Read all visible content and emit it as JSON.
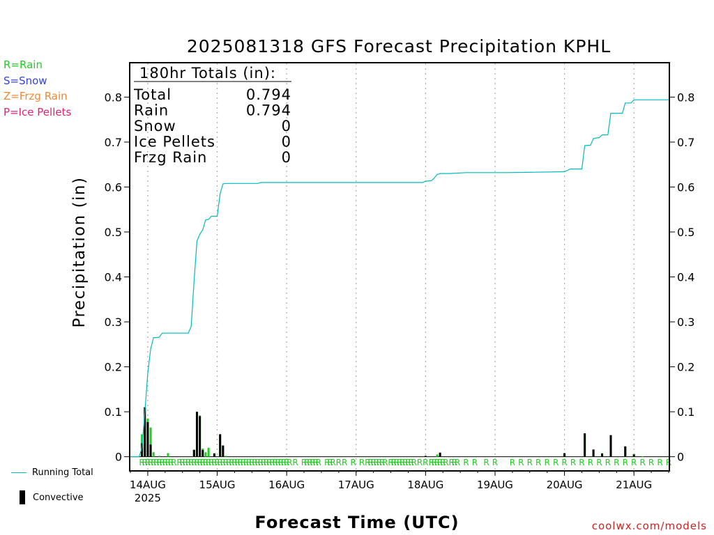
{
  "title": "2025081318 GFS Forecast Precipitation KPHL",
  "ylabel": "Precipitation (in)",
  "xlabel": "Forecast Time (UTC)",
  "credit": "coolwx.com/models",
  "legend_types": {
    "rain": "R=Rain",
    "snow": "S=Snow",
    "frzg_rain": "Z=Frzg Rain",
    "ice_pellets": "P=Ice Pellets"
  },
  "legend_series": {
    "running_total": "Running Total",
    "convective": "Convective"
  },
  "totals": {
    "header": "180hr Totals (in):",
    "rows": [
      {
        "label": "Total",
        "value": "0.794"
      },
      {
        "label": "Rain",
        "value": "0.794"
      },
      {
        "label": "Snow",
        "value": "0"
      },
      {
        "label": "Ice Pellets",
        "value": "0"
      },
      {
        "label": "Frzg Rain",
        "value": "0"
      }
    ]
  },
  "colors": {
    "running_total": "#00bbbb",
    "precip_bar": "#22cc22",
    "convective_bar": "#000000",
    "rain_marker": "#22cc22",
    "credit": "#cc2222"
  },
  "chart_data": {
    "type": "bar",
    "x_start_hour": 0,
    "x_end_hour": 186,
    "ylim": [
      -0.03,
      0.875
    ],
    "yticks": [
      0,
      0.1,
      0.2,
      0.3,
      0.4,
      0.5,
      0.6,
      0.7,
      0.8
    ],
    "ytick_labels": [
      "0",
      "0.1",
      "0.2",
      "0.3",
      "0.4",
      "0.5",
      "0.6",
      "0.7",
      "0.8"
    ],
    "xticks": [
      {
        "hour": 6,
        "label": "14AUG",
        "sublabel": "2025"
      },
      {
        "hour": 30,
        "label": "15AUG",
        "sublabel": ""
      },
      {
        "hour": 54,
        "label": "16AUG",
        "sublabel": ""
      },
      {
        "hour": 78,
        "label": "17AUG",
        "sublabel": ""
      },
      {
        "hour": 102,
        "label": "18AUG",
        "sublabel": ""
      },
      {
        "hour": 126,
        "label": "19AUG",
        "sublabel": ""
      },
      {
        "hour": 150,
        "label": "20AUG",
        "sublabel": ""
      },
      {
        "hour": 174,
        "label": "21AUG",
        "sublabel": ""
      }
    ],
    "running_total": [
      [
        0,
        0
      ],
      [
        3,
        0
      ],
      [
        4,
        0.02
      ],
      [
        5,
        0.1
      ],
      [
        6,
        0.185
      ],
      [
        7,
        0.24
      ],
      [
        8,
        0.265
      ],
      [
        9,
        0.265
      ],
      [
        10,
        0.266
      ],
      [
        11,
        0.275
      ],
      [
        20,
        0.275
      ],
      [
        21,
        0.29
      ],
      [
        22,
        0.39
      ],
      [
        23,
        0.48
      ],
      [
        24,
        0.495
      ],
      [
        25,
        0.505
      ],
      [
        26,
        0.527
      ],
      [
        27,
        0.528
      ],
      [
        28,
        0.535
      ],
      [
        30,
        0.535
      ],
      [
        31,
        0.585
      ],
      [
        32,
        0.607
      ],
      [
        33,
        0.608
      ],
      [
        44,
        0.608
      ],
      [
        45,
        0.61
      ],
      [
        100,
        0.61
      ],
      [
        101,
        0.61
      ],
      [
        102,
        0.613
      ],
      [
        104,
        0.614
      ],
      [
        105,
        0.62
      ],
      [
        106,
        0.628
      ],
      [
        107,
        0.63
      ],
      [
        110,
        0.63
      ],
      [
        116,
        0.632
      ],
      [
        130,
        0.632
      ],
      [
        140,
        0.633
      ],
      [
        150,
        0.634
      ],
      [
        152,
        0.64
      ],
      [
        156,
        0.64
      ],
      [
        157,
        0.692
      ],
      [
        159,
        0.693
      ],
      [
        160,
        0.708
      ],
      [
        162,
        0.71
      ],
      [
        163,
        0.716
      ],
      [
        165,
        0.716
      ],
      [
        166,
        0.764
      ],
      [
        170,
        0.764
      ],
      [
        171,
        0.787
      ],
      [
        173,
        0.787
      ],
      [
        174,
        0.794
      ],
      [
        186,
        0.794
      ]
    ],
    "precip_bars": [
      [
        4,
        0.05
      ],
      [
        5,
        0.08
      ],
      [
        6,
        0.085
      ],
      [
        7,
        0.065
      ],
      [
        8,
        0.01
      ],
      [
        10,
        0.002
      ],
      [
        13,
        0.008
      ],
      [
        22,
        0.016
      ],
      [
        23,
        0.1
      ],
      [
        24,
        0.092
      ],
      [
        25,
        0.018
      ],
      [
        26,
        0.01
      ],
      [
        27,
        0.02
      ],
      [
        29,
        0.008
      ],
      [
        31,
        0.05
      ],
      [
        32,
        0.025
      ],
      [
        33,
        0.002
      ],
      [
        102,
        0.002
      ],
      [
        106,
        0.005
      ],
      [
        107,
        0.009
      ],
      [
        150,
        0.008
      ],
      [
        157,
        0.052
      ],
      [
        160,
        0.016
      ],
      [
        163,
        0.008
      ],
      [
        166,
        0.048
      ],
      [
        171,
        0.023
      ],
      [
        174,
        0.006
      ],
      [
        177,
        0.001
      ]
    ],
    "convective_bars": [
      [
        4,
        0.03
      ],
      [
        5,
        0.11
      ],
      [
        6,
        0.077
      ],
      [
        7,
        0.027
      ],
      [
        22,
        0.015
      ],
      [
        23,
        0.1
      ],
      [
        24,
        0.09
      ],
      [
        25,
        0.015
      ],
      [
        29,
        0.007
      ],
      [
        31,
        0.05
      ],
      [
        32,
        0.025
      ],
      [
        102,
        0.002
      ],
      [
        107,
        0.009
      ],
      [
        150,
        0.008
      ],
      [
        157,
        0.052
      ],
      [
        160,
        0.016
      ],
      [
        163,
        0.007
      ],
      [
        166,
        0.048
      ],
      [
        171,
        0.023
      ],
      [
        174,
        0.005
      ]
    ],
    "rain_markers": [
      4,
      5,
      6,
      7,
      8,
      9,
      10,
      11,
      12,
      13,
      14,
      15,
      17,
      18,
      19,
      20,
      21,
      22,
      23,
      24,
      25,
      26,
      27,
      28,
      29,
      30,
      31,
      32,
      33,
      34,
      35,
      36,
      37,
      38,
      39,
      40,
      41,
      42,
      43,
      44,
      45,
      46,
      47,
      48,
      49,
      50,
      51,
      52,
      53,
      54,
      55,
      57,
      60,
      61,
      62,
      63,
      64,
      65,
      68,
      69,
      70,
      72,
      74,
      77,
      80,
      82,
      83,
      84,
      85,
      86,
      87,
      88,
      90,
      91,
      92,
      93,
      94,
      95,
      96,
      97,
      98,
      100,
      102,
      104,
      105,
      106,
      107,
      108,
      109,
      111,
      112,
      113,
      116,
      119,
      123,
      126,
      132,
      135,
      138,
      141,
      144,
      147,
      150,
      153,
      156,
      159,
      162,
      165,
      168,
      171,
      174,
      177,
      180,
      183,
      186
    ],
    "rain_marker_label": "R"
  }
}
